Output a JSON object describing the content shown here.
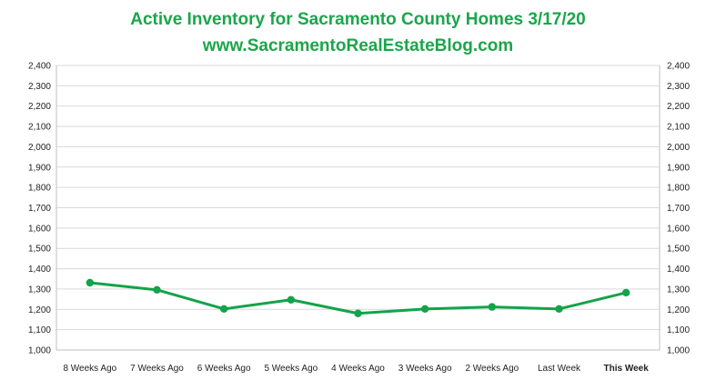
{
  "chart_data": {
    "type": "line",
    "title": "Active Inventory for Sacramento County Homes 3/17/20",
    "subtitle": "www.SacramentoRealEstateBlog.com",
    "categories": [
      "8 Weeks Ago",
      "7 Weeks Ago",
      "6 Weeks Ago",
      "5 Weeks Ago",
      "4 Weeks Ago",
      "3 Weeks Ago",
      "2 Weeks Ago",
      "Last Week",
      "This Week"
    ],
    "series": [
      {
        "values": [
          1331,
          1296,
          1202,
          1247,
          1180,
          1202,
          1212,
          1202,
          1282
        ]
      }
    ],
    "ylim": [
      1000,
      2400
    ],
    "yticks": [
      "1,000",
      "1,100",
      "1,200",
      "1,300",
      "1,400",
      "1,500",
      "1,600",
      "1,700",
      "1,800",
      "1,900",
      "2,000",
      "2,100",
      "2,200",
      "2,300",
      "2,400"
    ],
    "secondary_y_axis": true,
    "grid": true,
    "colors": {
      "title": "#1aa64a",
      "line": "#13a34a",
      "highlight_label": "#1aa64a",
      "grid": "#d9d9d9"
    },
    "highlighted_category": "This Week"
  }
}
